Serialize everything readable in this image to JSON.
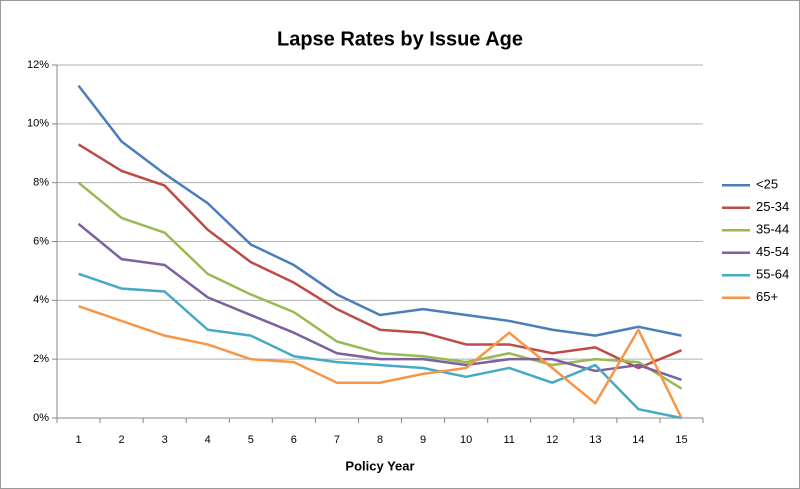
{
  "chart_data": {
    "type": "line",
    "title": "Lapse Rates by Issue Age",
    "x_label": "Policy Year",
    "categories": [
      1,
      2,
      3,
      4,
      5,
      6,
      7,
      8,
      9,
      10,
      11,
      12,
      13,
      14,
      15
    ],
    "series": [
      {
        "name": "<25",
        "color": "#4a7ebb",
        "values": [
          11.3,
          9.4,
          8.3,
          7.3,
          5.9,
          5.2,
          4.2,
          3.5,
          3.7,
          3.5,
          3.3,
          3.0,
          2.8,
          3.1,
          2.8
        ]
      },
      {
        "name": "25-34",
        "color": "#be4b48",
        "values": [
          9.3,
          8.4,
          7.9,
          6.4,
          5.3,
          4.6,
          3.7,
          3.0,
          2.9,
          2.5,
          2.5,
          2.2,
          2.4,
          1.7,
          2.3
        ]
      },
      {
        "name": "35-44",
        "color": "#98b954",
        "values": [
          8.0,
          6.8,
          6.3,
          4.9,
          4.2,
          3.6,
          2.6,
          2.2,
          2.1,
          1.9,
          2.2,
          1.8,
          2.0,
          1.9,
          1.0
        ]
      },
      {
        "name": "45-54",
        "color": "#7d60a0",
        "values": [
          6.6,
          5.4,
          5.2,
          4.1,
          3.5,
          2.9,
          2.2,
          2.0,
          2.0,
          1.8,
          2.0,
          2.0,
          1.6,
          1.8,
          1.3
        ]
      },
      {
        "name": "55-64",
        "color": "#46aac5",
        "values": [
          4.9,
          4.4,
          4.3,
          3.0,
          2.8,
          2.1,
          1.9,
          1.8,
          1.7,
          1.4,
          1.7,
          1.2,
          1.8,
          0.3,
          0.0
        ]
      },
      {
        "name": "65+",
        "color": "#f79646",
        "values": [
          3.8,
          3.3,
          2.8,
          2.5,
          2.0,
          1.9,
          1.2,
          1.2,
          1.5,
          1.7,
          2.9,
          1.7,
          0.5,
          3.0,
          0.0
        ]
      }
    ],
    "ylim": [
      0,
      12
    ],
    "yticks": [
      {
        "value": 0,
        "label": "0%"
      },
      {
        "value": 2,
        "label": "2%"
      },
      {
        "value": 4,
        "label": "4%"
      },
      {
        "value": 6,
        "label": "6%"
      },
      {
        "value": 8,
        "label": "8%"
      },
      {
        "value": 10,
        "label": "10%"
      },
      {
        "value": 12,
        "label": "12%"
      }
    ],
    "grid": true,
    "legend": "right"
  }
}
